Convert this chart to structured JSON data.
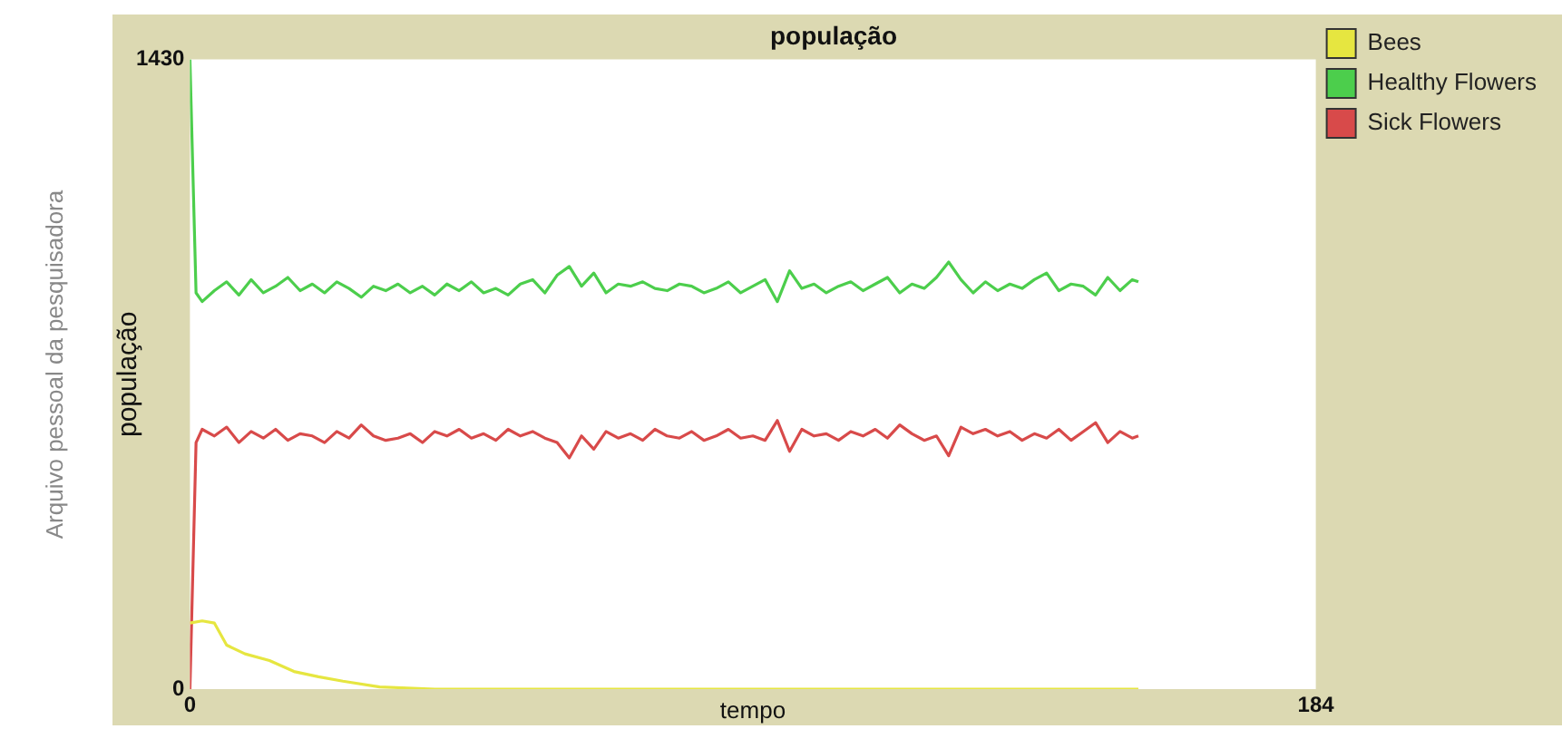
{
  "chart_data": {
    "type": "line",
    "title": "população",
    "xlabel": "tempo",
    "ylabel": "população",
    "annotations": [
      "Arquivo pessoal da pesquisadora"
    ],
    "xlim": [
      0,
      184
    ],
    "xticks": [
      0,
      184
    ],
    "ylim": [
      0,
      1430
    ],
    "yticks": [
      0,
      1430
    ],
    "grid": false,
    "legend": "top right",
    "marker": "none",
    "line_style": "solid",
    "series": [
      {
        "name": "Bees",
        "color": "#e6e640",
        "x": [
          0,
          2,
          4,
          6,
          9,
          13,
          17,
          21,
          25,
          31,
          40,
          155
        ],
        "values": [
          150,
          155,
          150,
          100,
          80,
          65,
          40,
          28,
          18,
          5,
          0,
          0
        ]
      },
      {
        "name": "Healthy Flowers",
        "color": "#4cce4c",
        "x": [
          0,
          1,
          2,
          4,
          6,
          8,
          10,
          12,
          14,
          16,
          18,
          20,
          22,
          24,
          26,
          28,
          30,
          32,
          34,
          36,
          38,
          40,
          42,
          44,
          46,
          48,
          50,
          52,
          54,
          56,
          58,
          60,
          62,
          64,
          66,
          68,
          70,
          72,
          74,
          76,
          78,
          80,
          82,
          84,
          86,
          88,
          90,
          92,
          94,
          96,
          98,
          100,
          102,
          104,
          106,
          108,
          110,
          112,
          114,
          116,
          118,
          120,
          122,
          124,
          126,
          128,
          130,
          132,
          134,
          136,
          138,
          140,
          142,
          144,
          146,
          148,
          150,
          152,
          154,
          155
        ],
        "values": [
          1430,
          900,
          880,
          905,
          925,
          895,
          930,
          900,
          915,
          935,
          905,
          920,
          900,
          925,
          910,
          890,
          915,
          905,
          920,
          900,
          915,
          895,
          920,
          905,
          925,
          900,
          910,
          895,
          920,
          930,
          900,
          940,
          960,
          915,
          945,
          900,
          920,
          915,
          925,
          910,
          905,
          920,
          915,
          900,
          910,
          925,
          900,
          915,
          930,
          880,
          950,
          910,
          920,
          900,
          915,
          925,
          905,
          920,
          935,
          900,
          920,
          910,
          935,
          970,
          930,
          900,
          925,
          905,
          920,
          910,
          930,
          945,
          905,
          920,
          915,
          895,
          935,
          905,
          930,
          925
        ]
      },
      {
        "name": "Sick Flowers",
        "color": "#d84a4a",
        "x": [
          0,
          1,
          2,
          4,
          6,
          8,
          10,
          12,
          14,
          16,
          18,
          20,
          22,
          24,
          26,
          28,
          30,
          32,
          34,
          36,
          38,
          40,
          42,
          44,
          46,
          48,
          50,
          52,
          54,
          56,
          58,
          60,
          62,
          64,
          66,
          68,
          70,
          72,
          74,
          76,
          78,
          80,
          82,
          84,
          86,
          88,
          90,
          92,
          94,
          96,
          98,
          100,
          102,
          104,
          106,
          108,
          110,
          112,
          114,
          116,
          118,
          120,
          122,
          124,
          126,
          128,
          130,
          132,
          134,
          136,
          138,
          140,
          142,
          144,
          146,
          148,
          150,
          152,
          154,
          155
        ],
        "values": [
          0,
          560,
          590,
          575,
          595,
          560,
          585,
          570,
          590,
          565,
          580,
          575,
          560,
          585,
          570,
          600,
          575,
          565,
          570,
          580,
          560,
          585,
          575,
          590,
          570,
          580,
          565,
          590,
          575,
          585,
          570,
          560,
          525,
          575,
          545,
          585,
          570,
          580,
          565,
          590,
          575,
          570,
          585,
          565,
          575,
          590,
          570,
          575,
          565,
          610,
          540,
          590,
          575,
          580,
          565,
          585,
          575,
          590,
          570,
          600,
          580,
          565,
          575,
          530,
          595,
          580,
          590,
          575,
          585,
          565,
          580,
          570,
          590,
          565,
          585,
          605,
          560,
          585,
          570,
          575
        ]
      }
    ]
  }
}
